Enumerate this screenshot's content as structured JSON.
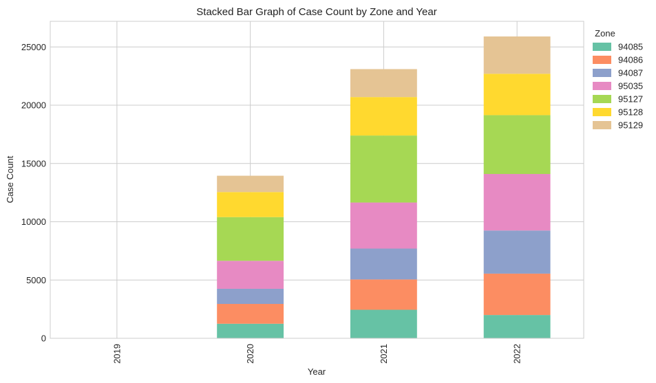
{
  "chart_data": {
    "type": "bar",
    "stacked": true,
    "title": "Stacked Bar Graph of Case Count by Zone and Year",
    "xlabel": "Year",
    "ylabel": "Case Count",
    "categories": [
      "2019",
      "2020",
      "2021",
      "2022"
    ],
    "ylim": [
      0,
      27200
    ],
    "yticks": [
      0,
      5000,
      10000,
      15000,
      20000,
      25000
    ],
    "grid": true,
    "legend": {
      "title": "Zone",
      "placement": "outside-top-right"
    },
    "series": [
      {
        "name": "94085",
        "color": "#66c2a5",
        "values": [
          0,
          1250,
          2450,
          2000
        ]
      },
      {
        "name": "94086",
        "color": "#fc8d62",
        "values": [
          0,
          1700,
          2600,
          3550
        ]
      },
      {
        "name": "94087",
        "color": "#8da0cb",
        "values": [
          0,
          1300,
          2650,
          3700
        ]
      },
      {
        "name": "95035",
        "color": "#e78ac3",
        "values": [
          0,
          2400,
          3950,
          4850
        ]
      },
      {
        "name": "95127",
        "color": "#a6d854",
        "values": [
          0,
          3750,
          5750,
          5050
        ]
      },
      {
        "name": "95128",
        "color": "#ffd92f",
        "values": [
          0,
          2150,
          3300,
          3550
        ]
      },
      {
        "name": "95129",
        "color": "#e5c494",
        "values": [
          0,
          1400,
          2400,
          3200
        ]
      }
    ]
  }
}
